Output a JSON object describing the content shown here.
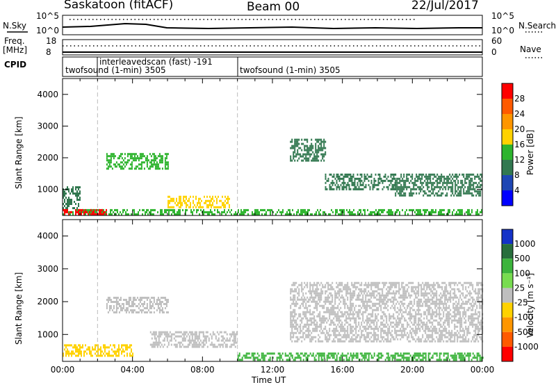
{
  "header": {
    "station": "Saskatoon (fitACF)",
    "beam": "Beam 00",
    "date": "22/Jul/2017"
  },
  "top_panels": {
    "nsky_label": "N.Sky",
    "nsearch_label": "N.Search",
    "nsky_ticks": [
      "10^5",
      "10^0"
    ],
    "nsearch_ticks": [
      "10^5",
      "10^0"
    ],
    "freq_label_1": "Freq.",
    "freq_label_2": "[MHz]",
    "freq_ticks": [
      "18",
      "8"
    ],
    "nave_label": "Nave",
    "nave_ticks": [
      "60",
      "0"
    ],
    "cpid_label": "CPID",
    "cpid_entries": [
      {
        "text": "twofsound (1-min) 3505",
        "start_hour": 0,
        "end_hour": 2
      },
      {
        "text": "interleavedscan (fast) -191",
        "start_hour": 2,
        "end_hour": 10
      },
      {
        "text": "twofsound (1-min) 3505",
        "start_hour": 10,
        "end_hour": 24
      }
    ]
  },
  "power_panel": {
    "ylabel": "Slant Range [km]",
    "colorbar_label": "Power [dB]",
    "colorbar_ticks": [
      "28",
      "24",
      "20",
      "16",
      "12",
      "8",
      "4"
    ],
    "colorbar_colors": [
      "#ff0000",
      "#ff5a00",
      "#ff9600",
      "#ffd200",
      "#2db42d",
      "#327850",
      "#1e46b4",
      "#0000ff"
    ]
  },
  "velocity_panel": {
    "ylabel": "Slant Range [km]",
    "colorbar_label": "Velocity [m s⁻¹]",
    "colorbar_ticks": [
      "1000",
      "500",
      "100",
      "25",
      "-25",
      "-100",
      "-500",
      "-1000"
    ],
    "colorbar_colors": [
      "#1432c8",
      "#286e3c",
      "#3cb43c",
      "#78dc50",
      "#bebebe",
      "#ffd200",
      "#ff9600",
      "#ff5a00",
      "#ff0000"
    ]
  },
  "xaxis_label": "Time UT",
  "chart_data": {
    "type": "heatmap",
    "x_ticks": [
      "00:00",
      "04:00",
      "08:00",
      "12:00",
      "16:00",
      "20:00",
      "00:00"
    ],
    "x_range_hours": [
      0,
      24
    ],
    "y_ticks": [
      "1000",
      "2000",
      "3000",
      "4000"
    ],
    "y_range_km": [
      180,
      4500
    ],
    "dashed_lines_hours": [
      2,
      10
    ],
    "power_regions": [
      {
        "t0": 0.0,
        "t1": 24.0,
        "r0": 200,
        "r1": 380,
        "value_db": 14
      },
      {
        "t0": 0.0,
        "t1": 1.0,
        "r0": 380,
        "r1": 1100,
        "value_db": 10
      },
      {
        "t0": 0.0,
        "t1": 2.5,
        "r0": 220,
        "r1": 380,
        "value_db": 28
      },
      {
        "t0": 2.5,
        "t1": 6.0,
        "r0": 1650,
        "r1": 2150,
        "value_db": 14
      },
      {
        "t0": 6.0,
        "t1": 9.5,
        "r0": 450,
        "r1": 800,
        "value_db": 16
      },
      {
        "t0": 13.0,
        "t1": 15.0,
        "r0": 1900,
        "r1": 2600,
        "value_db": 10
      },
      {
        "t0": 15.0,
        "t1": 19.0,
        "r0": 1000,
        "r1": 1500,
        "value_db": 8
      },
      {
        "t0": 19.0,
        "t1": 24.0,
        "r0": 800,
        "r1": 1500,
        "value_db": 8
      }
    ],
    "velocity_regions": [
      {
        "t0": 0.0,
        "t1": 4.0,
        "r0": 350,
        "r1": 700,
        "value_ms": -100
      },
      {
        "t0": 2.5,
        "t1": 6.0,
        "r0": 1650,
        "r1": 2150,
        "value_ms": 0
      },
      {
        "t0": 5.0,
        "t1": 10.0,
        "r0": 600,
        "r1": 1100,
        "value_ms": 0
      },
      {
        "t0": 10.0,
        "t1": 24.0,
        "r0": 200,
        "r1": 450,
        "value_ms": 100
      },
      {
        "t0": 13.0,
        "t1": 24.0,
        "r0": 800,
        "r1": 2600,
        "value_ms": 0
      }
    ]
  }
}
